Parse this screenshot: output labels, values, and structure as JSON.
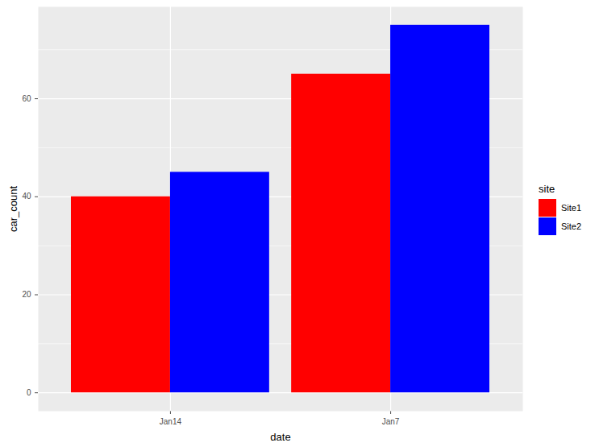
{
  "chart_data": {
    "type": "bar",
    "x_label": "date",
    "y_label": "car_count",
    "categories": [
      "Jan14",
      "Jan7"
    ],
    "series": [
      {
        "name": "Site1",
        "color": "#FF0000",
        "values": [
          40,
          65
        ]
      },
      {
        "name": "Site2",
        "color": "#0000FF",
        "values": [
          45,
          75
        ]
      }
    ],
    "ylim": [
      -3.75,
      78.75
    ],
    "yticks": [
      0,
      20,
      40,
      60
    ],
    "grid": true,
    "legend": "right",
    "legend_title": "site"
  }
}
